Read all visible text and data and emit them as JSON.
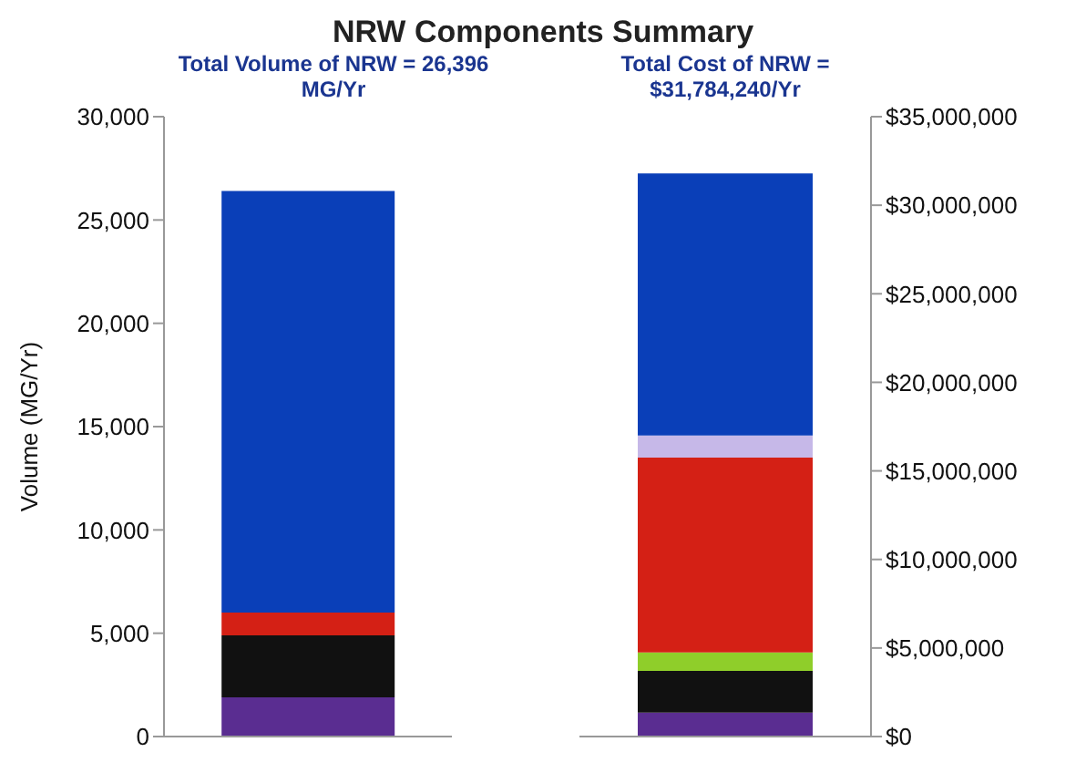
{
  "chart_data": [
    {
      "type": "bar",
      "title": "NRW Components Summary",
      "subtitle": "Total Volume of NRW = 26,396 MG/Yr",
      "ylabel": "Volume (MG/Yr)",
      "stacked": true,
      "categories": [
        null
      ],
      "ylim": [
        0,
        30000
      ],
      "yticks": [
        {
          "value": 0,
          "label": "0"
        },
        {
          "value": 5000,
          "label": "5,000"
        },
        {
          "value": 10000,
          "label": "10,000"
        },
        {
          "value": 15000,
          "label": "15,000"
        },
        {
          "value": 20000,
          "label": "20,000"
        },
        {
          "value": 25000,
          "label": "25,000"
        },
        {
          "value": 30000,
          "label": "30,000"
        }
      ],
      "series": [
        {
          "color": "#5a2d91",
          "values": [
            1900
          ]
        },
        {
          "color": "#111111",
          "values": [
            3000
          ]
        },
        {
          "color": "#d42015",
          "values": [
            1100
          ]
        },
        {
          "color": "#0a3fb8",
          "values": [
            20400
          ]
        }
      ]
    },
    {
      "type": "bar",
      "subtitle": "Total Cost of NRW = $31,784,240/Yr",
      "stacked": true,
      "categories": [
        null
      ],
      "ylim": [
        0,
        35000000
      ],
      "yticks": [
        {
          "value": 0,
          "label": "$0"
        },
        {
          "value": 5000000,
          "label": "$5,000,000"
        },
        {
          "value": 10000000,
          "label": "$10,000,000"
        },
        {
          "value": 15000000,
          "label": "$15,000,000"
        },
        {
          "value": 20000000,
          "label": "$20,000,000"
        },
        {
          "value": 25000000,
          "label": "$25,000,000"
        },
        {
          "value": 30000000,
          "label": "$30,000,000"
        },
        {
          "value": 35000000,
          "label": "$35,000,000"
        }
      ],
      "series": [
        {
          "color": "#5a2d91",
          "values": [
            1350000
          ]
        },
        {
          "color": "#111111",
          "values": [
            2350000
          ]
        },
        {
          "color": "#8fce2a",
          "values": [
            1050000
          ]
        },
        {
          "color": "#d42015",
          "values": [
            11000000
          ]
        },
        {
          "color": "#c6b8e8",
          "values": [
            1250000
          ]
        },
        {
          "color": "#0a3fb8",
          "values": [
            14800000
          ]
        }
      ]
    }
  ]
}
